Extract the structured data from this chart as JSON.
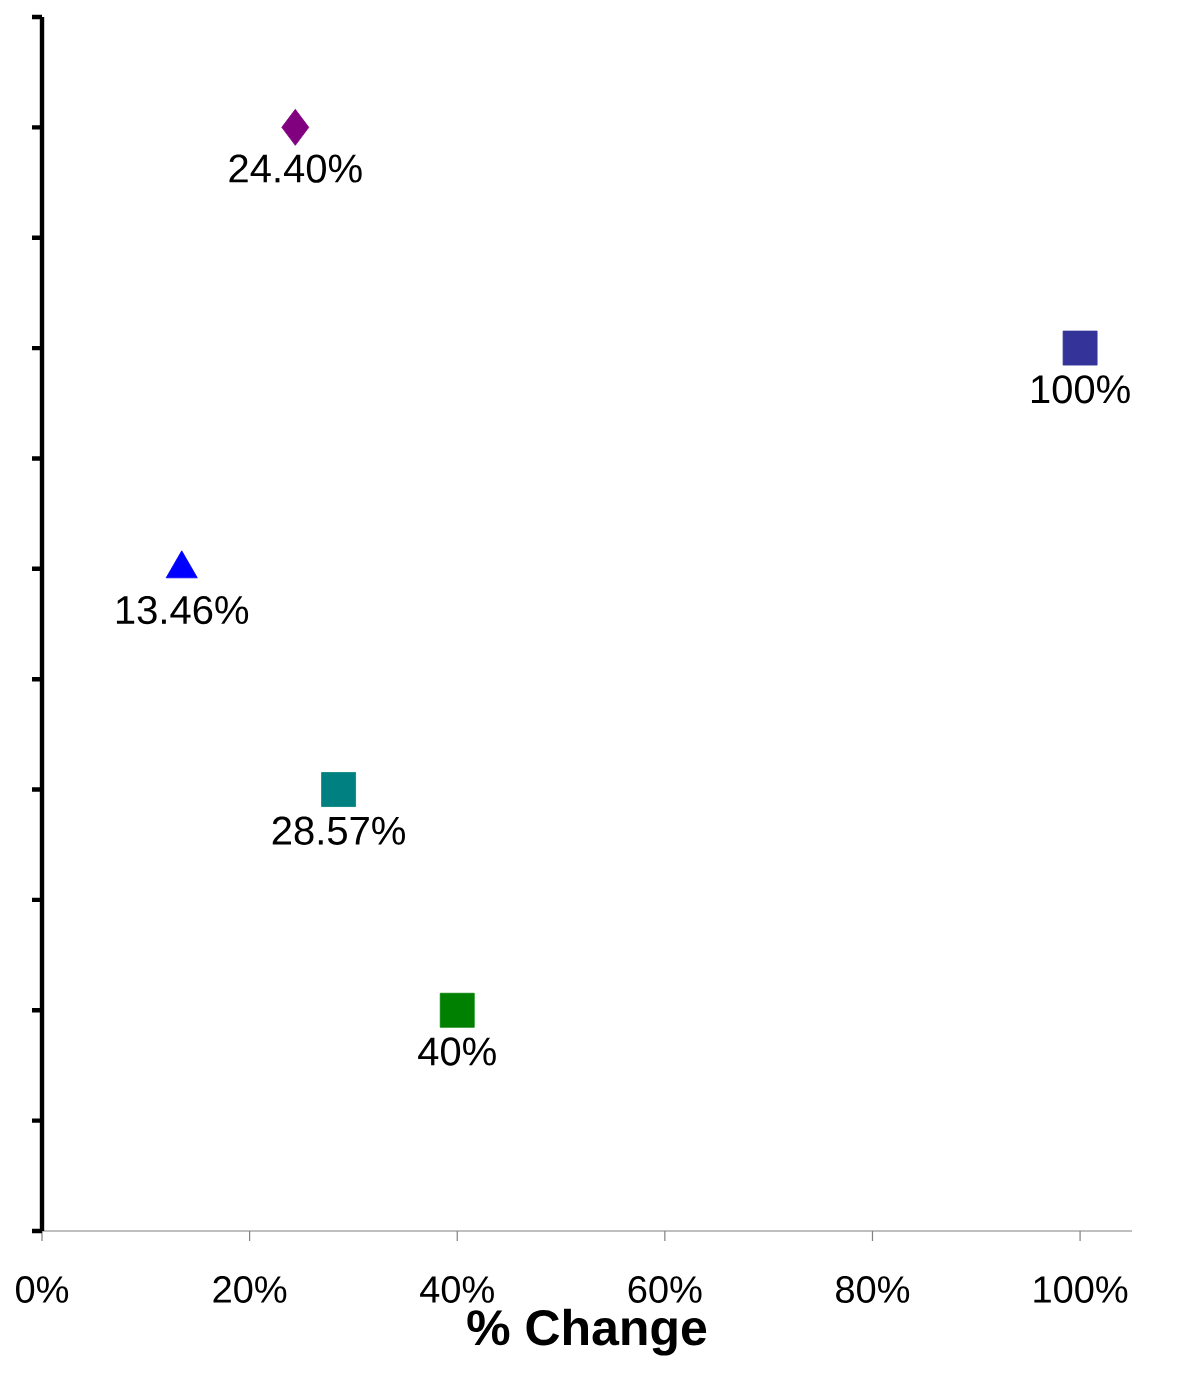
{
  "chart_data": {
    "type": "scatter",
    "orientation": "horizontal",
    "xlabel": "% Change",
    "xlim": [
      0,
      105
    ],
    "xticks": [
      {
        "value": 0,
        "label": "0%"
      },
      {
        "value": 20,
        "label": "20%"
      },
      {
        "value": 40,
        "label": "40%"
      },
      {
        "value": 60,
        "label": "60%"
      },
      {
        "value": 80,
        "label": "80%"
      },
      {
        "value": 100,
        "label": "100%"
      }
    ],
    "categories": [
      null,
      null,
      null,
      null,
      null,
      null,
      null,
      null,
      null,
      null,
      null,
      null
    ],
    "grid": false,
    "series": [
      {
        "color": "#800080",
        "marker": "diamond",
        "values": [
          null,
          24.4,
          null,
          null,
          null,
          null,
          null,
          null,
          null,
          null,
          null,
          null
        ],
        "value_labels": [
          null,
          "24.40%",
          null,
          null,
          null,
          null,
          null,
          null,
          null,
          null,
          null,
          null
        ]
      },
      {
        "color": "#333399",
        "marker": "square",
        "values": [
          null,
          null,
          null,
          100,
          null,
          null,
          null,
          null,
          null,
          null,
          null,
          null
        ],
        "value_labels": [
          null,
          null,
          null,
          "100%",
          null,
          null,
          null,
          null,
          null,
          null,
          null,
          null
        ]
      },
      {
        "color": "#0000ff",
        "marker": "triangle",
        "values": [
          null,
          null,
          null,
          null,
          null,
          13.46,
          null,
          null,
          null,
          null,
          null,
          null
        ],
        "value_labels": [
          null,
          null,
          null,
          null,
          null,
          "13.46%",
          null,
          null,
          null,
          null,
          null,
          null
        ]
      },
      {
        "color": "#008080",
        "marker": "square",
        "values": [
          null,
          null,
          null,
          null,
          null,
          null,
          null,
          28.57,
          null,
          null,
          null,
          null
        ],
        "value_labels": [
          null,
          null,
          null,
          null,
          null,
          null,
          null,
          "28.57%",
          null,
          null,
          null,
          null
        ]
      },
      {
        "color": "#008000",
        "marker": "square",
        "values": [
          null,
          null,
          null,
          null,
          null,
          null,
          null,
          null,
          null,
          40,
          null,
          null
        ],
        "value_labels": [
          null,
          null,
          null,
          null,
          null,
          null,
          null,
          null,
          null,
          "40%",
          null,
          null
        ]
      }
    ]
  }
}
